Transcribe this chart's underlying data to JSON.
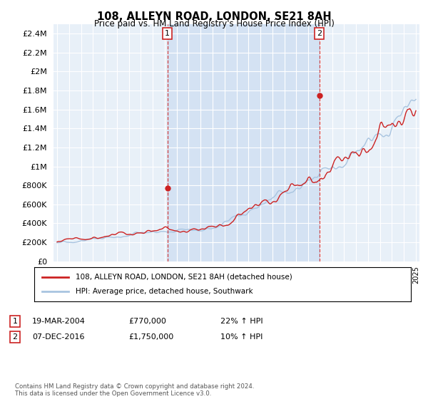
{
  "title": "108, ALLEYN ROAD, LONDON, SE21 8AH",
  "subtitle": "Price paid vs. HM Land Registry's House Price Index (HPI)",
  "ylim": [
    0,
    2500000
  ],
  "yticks": [
    0,
    200000,
    400000,
    600000,
    800000,
    1000000,
    1200000,
    1400000,
    1600000,
    1800000,
    2000000,
    2200000,
    2400000
  ],
  "ytick_labels": [
    "£0",
    "£200K",
    "£400K",
    "£600K",
    "£800K",
    "£1M",
    "£1.2M",
    "£1.4M",
    "£1.6M",
    "£1.8M",
    "£2M",
    "£2.2M",
    "£2.4M"
  ],
  "sale1_date_num": 2004.22,
  "sale1_price": 770000,
  "sale2_date_num": 2016.93,
  "sale2_price": 1750000,
  "hpi_color": "#a8c4e0",
  "price_color": "#cc2222",
  "sale_marker_color": "#cc2222",
  "background_color": "#e8f0f8",
  "shade_color": "#c8daf0",
  "legend_label_price": "108, ALLEYN ROAD, LONDON, SE21 8AH (detached house)",
  "legend_label_hpi": "HPI: Average price, detached house, Southwark",
  "footer": "Contains HM Land Registry data © Crown copyright and database right 2024.\nThis data is licensed under the Open Government Licence v3.0.",
  "xstart": 1995,
  "xend": 2025
}
